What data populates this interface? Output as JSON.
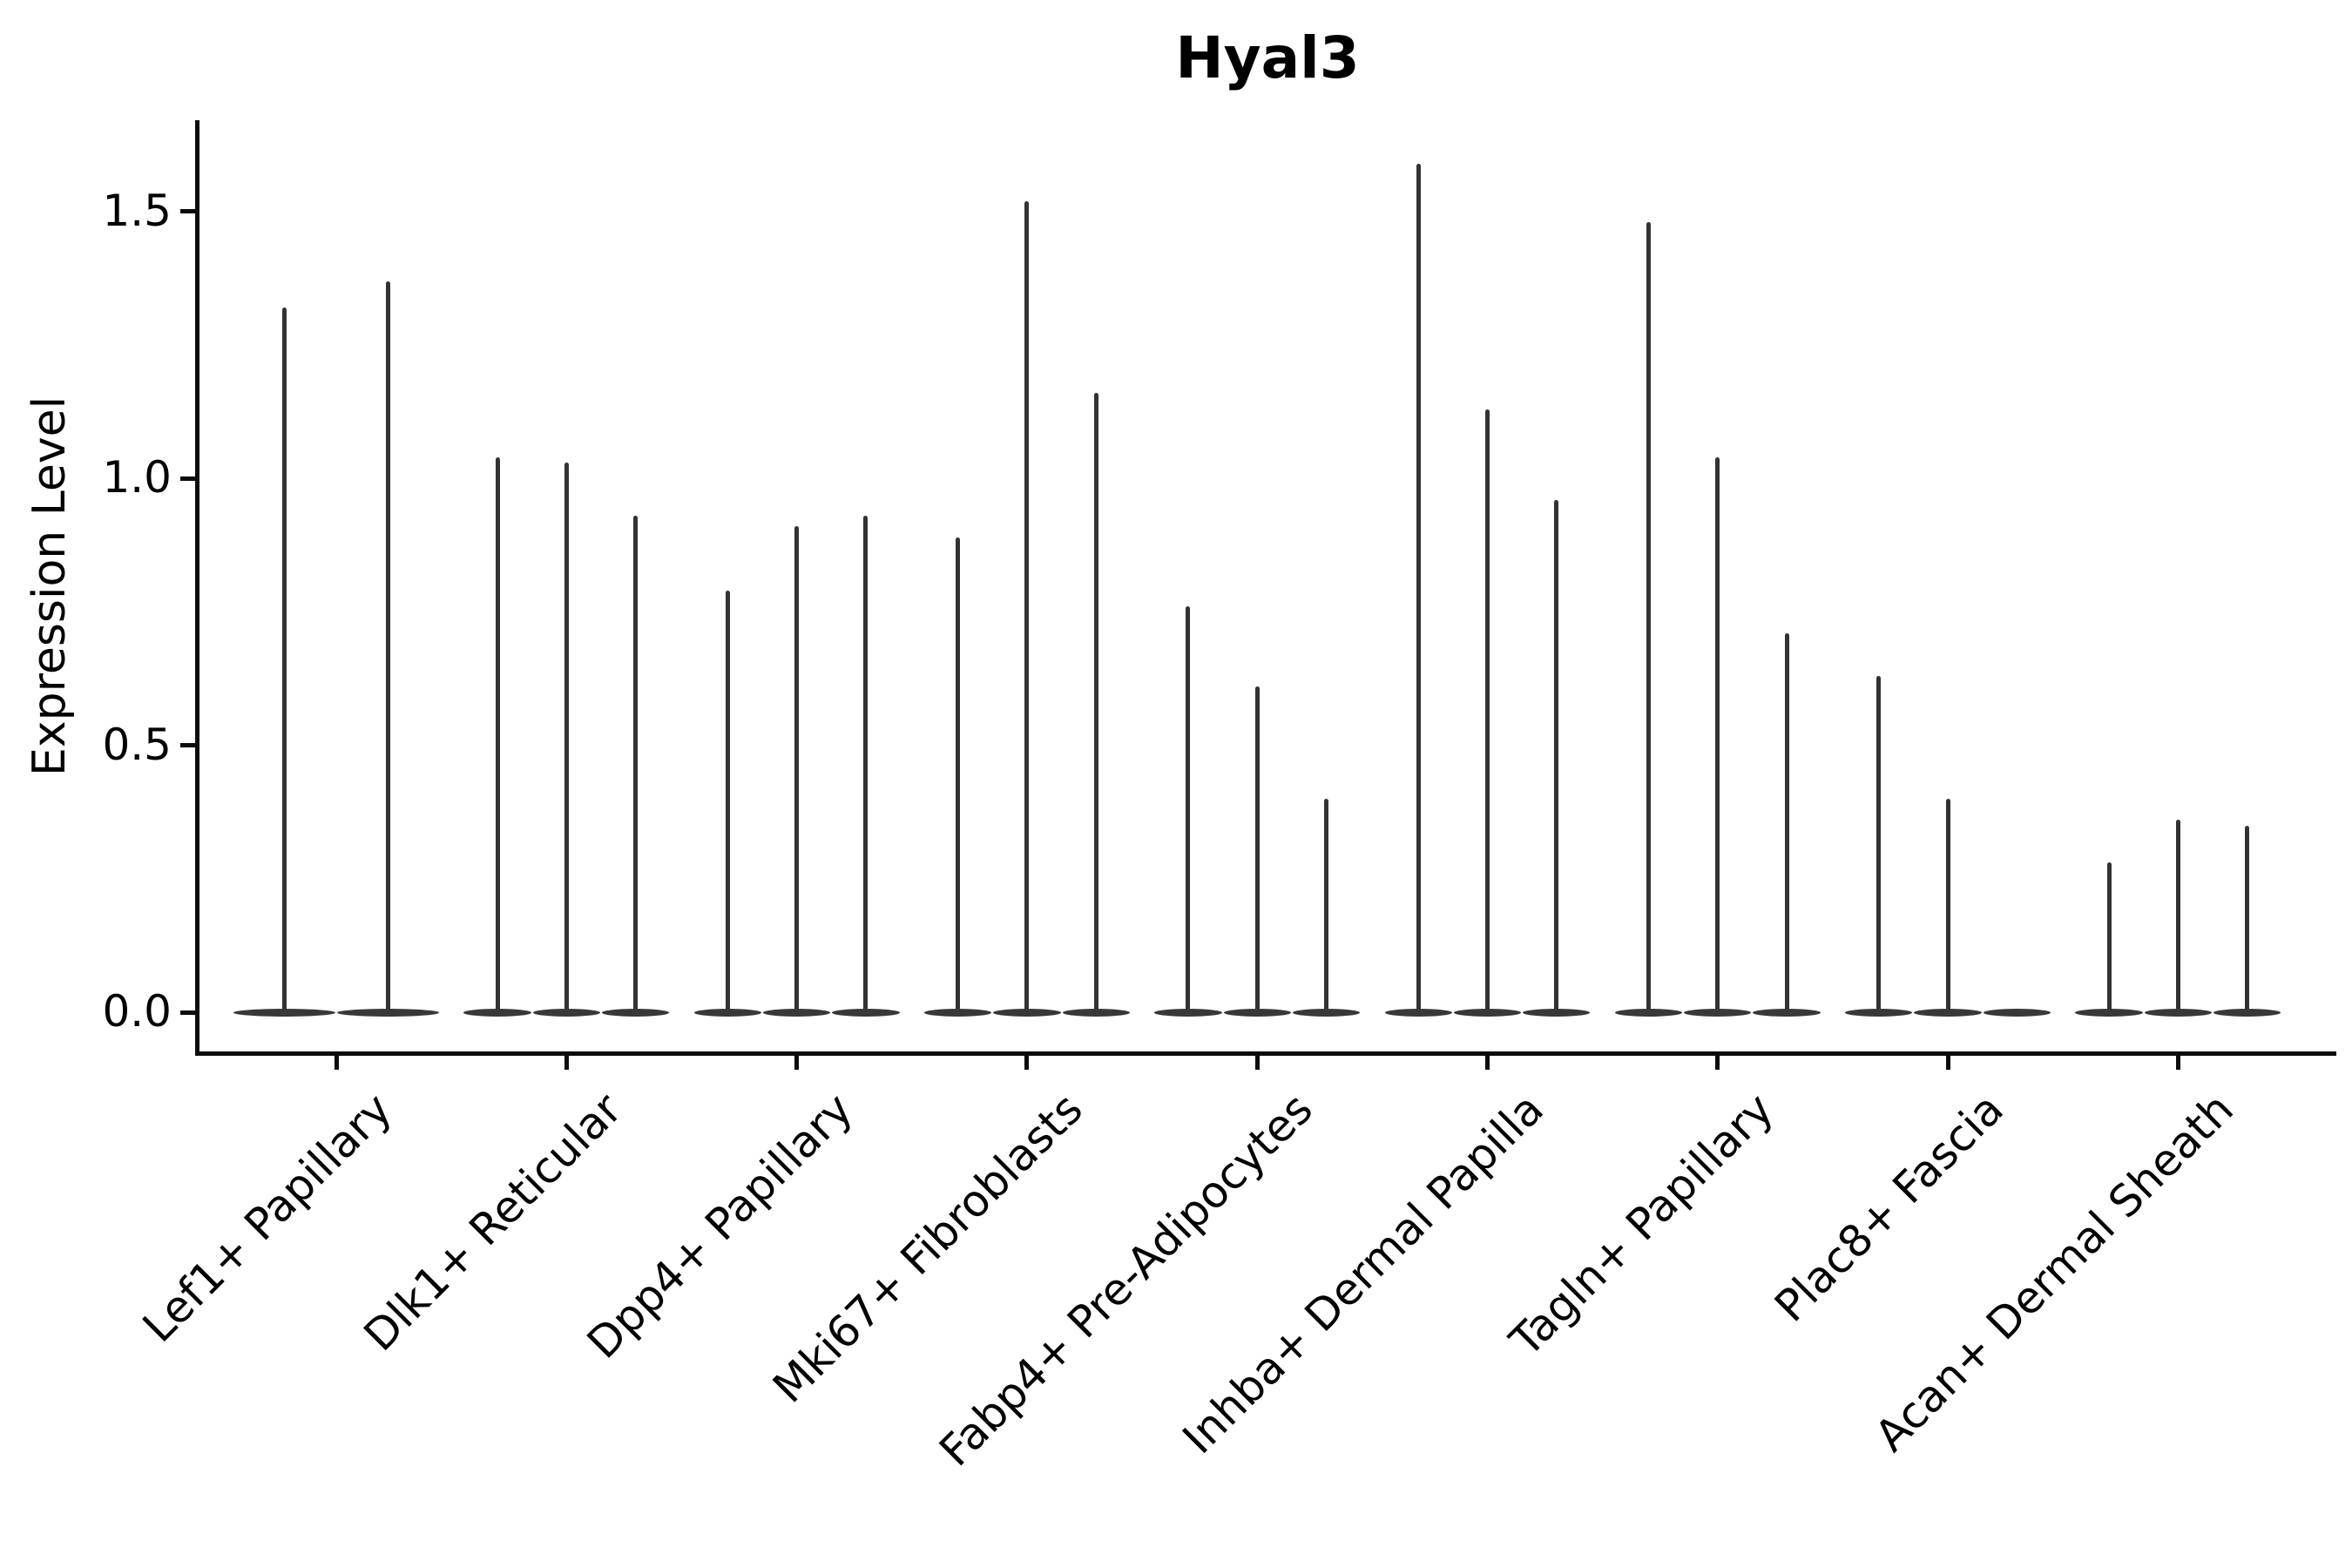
{
  "chart_data": {
    "type": "violin",
    "title": "Hyal3",
    "ylabel": "Expression Level",
    "xlabel": "",
    "categories": [
      "Lef1+ Papillary",
      "Dlk1+ Reticular",
      "Dpp4+ Papillary",
      "Mki67+ Fibroblasts",
      "Fabp4+ Pre-Adipocytes",
      "Inhba+ Dermal Papilla",
      "Tagln+ Papillary",
      "Plac8+ Fascia",
      "Acan+ Dermal Sheath"
    ],
    "violin_peaks_per_category": [
      [
        1.32,
        1.37
      ],
      [
        1.04,
        1.03,
        0.93
      ],
      [
        0.79,
        0.91,
        0.93
      ],
      [
        0.89,
        1.52,
        1.16
      ],
      [
        0.76,
        0.61,
        0.4
      ],
      [
        1.59,
        1.13,
        0.96
      ],
      [
        1.48,
        1.04,
        0.71
      ],
      [
        0.63,
        0.4,
        0.0
      ],
      [
        0.28,
        0.36,
        0.35
      ]
    ],
    "ytick_labels": [
      "0.0",
      "0.5",
      "1.0",
      "1.5"
    ],
    "ytick_values": [
      0.0,
      0.5,
      1.0,
      1.5
    ],
    "ylim": [
      -0.07,
      1.67
    ],
    "legend_position": "none",
    "grid": false,
    "style": "needle-thin violins with flat bulge at zero, dodged groups of 2-3 per category, x labels rotated 45 degrees",
    "colors": {
      "violin": "#333333",
      "axes": "#0c0c0c",
      "text": "#000000",
      "background": "#ffffff"
    }
  }
}
